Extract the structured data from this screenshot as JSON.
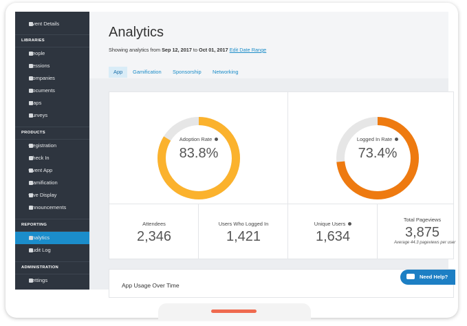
{
  "sidebar": {
    "top": "Event Details",
    "sections": [
      {
        "title": "LIBRARIES",
        "items": [
          "People",
          "Sessions",
          "Companies",
          "Documents",
          "Maps",
          "Surveys"
        ]
      },
      {
        "title": "PRODUCTS",
        "items": [
          "Registration",
          "Check In",
          "Event App",
          "Gamification",
          "Live Display",
          "Announcements"
        ]
      },
      {
        "title": "REPORTING",
        "items": [
          "Analytics",
          "Audit Log"
        ]
      },
      {
        "title": "ADMINISTRATION",
        "items": [
          "Settings"
        ]
      }
    ]
  },
  "header": {
    "title": "Analytics",
    "prefix": "Showing analytics from",
    "start_date": "Sep 12, 2017",
    "to": "to",
    "end_date": "Oct 01, 2017",
    "edit_link": "Edit Date Range"
  },
  "tabs": [
    "App",
    "Gamification",
    "Sponsorship",
    "Networking"
  ],
  "rates": [
    {
      "label": "Adoption Rate",
      "value": 83.8,
      "value_label": "83.8%",
      "color": "#fbb22d"
    },
    {
      "label": "Logged In Rate",
      "value": 73.4,
      "value_label": "73.4%",
      "color": "#ee7a10"
    }
  ],
  "stats": [
    {
      "label": "Attendees",
      "value": "2,346"
    },
    {
      "label": "Users Who Logged In",
      "value": "1,421"
    },
    {
      "label": "Unique Users",
      "value": "1,634"
    },
    {
      "label": "Total Pageviews",
      "value": "3,875",
      "note": "Average 44.3 pageviews per user"
    }
  ],
  "usage": {
    "title": "App Usage Over Time"
  },
  "help_button": "Need Help?"
}
